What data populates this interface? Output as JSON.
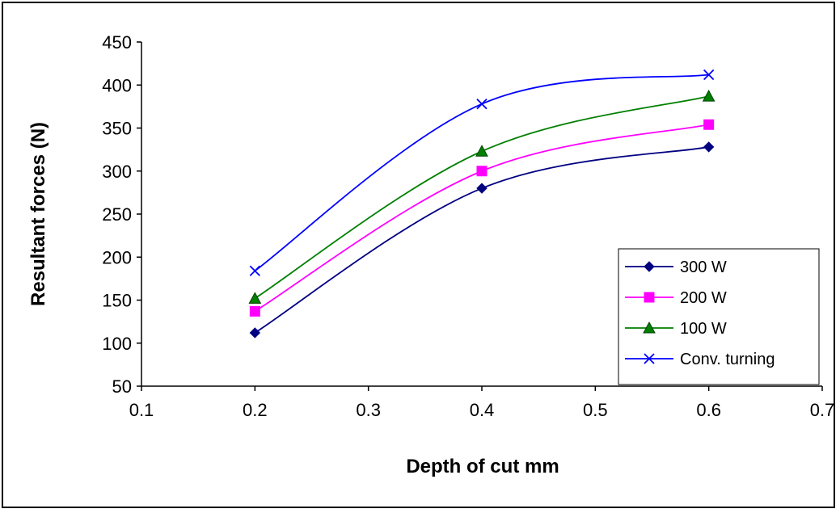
{
  "chart_data": {
    "type": "line",
    "title": "",
    "xlabel": "Depth of cut  mm",
    "ylabel": "Resultant forces (N)",
    "xlim": [
      0.1,
      0.7
    ],
    "ylim": [
      50,
      450
    ],
    "xticks": [
      "0.1",
      "0.2",
      "0.3",
      "0.4",
      "0.5",
      "0.6",
      "0.7"
    ],
    "yticks": [
      "50",
      "100",
      "150",
      "200",
      "250",
      "300",
      "350",
      "400",
      "450"
    ],
    "grid": false,
    "legend_position": "bottom-right",
    "series": [
      {
        "name": "300 W",
        "color": "#000080",
        "marker": "diamond",
        "x": [
          0.2,
          0.4,
          0.6
        ],
        "y": [
          112,
          280,
          328
        ]
      },
      {
        "name": "200 W",
        "color": "#ff00ff",
        "marker": "square",
        "x": [
          0.2,
          0.4,
          0.6
        ],
        "y": [
          137,
          300,
          354
        ]
      },
      {
        "name": "100 W",
        "color": "#008000",
        "marker": "triangle",
        "x": [
          0.2,
          0.4,
          0.6
        ],
        "y": [
          152,
          323,
          387
        ]
      },
      {
        "name": "Conv. turning",
        "color": "#0000ff",
        "marker": "x",
        "x": [
          0.2,
          0.4,
          0.6
        ],
        "y": [
          184,
          378,
          412
        ]
      }
    ]
  }
}
